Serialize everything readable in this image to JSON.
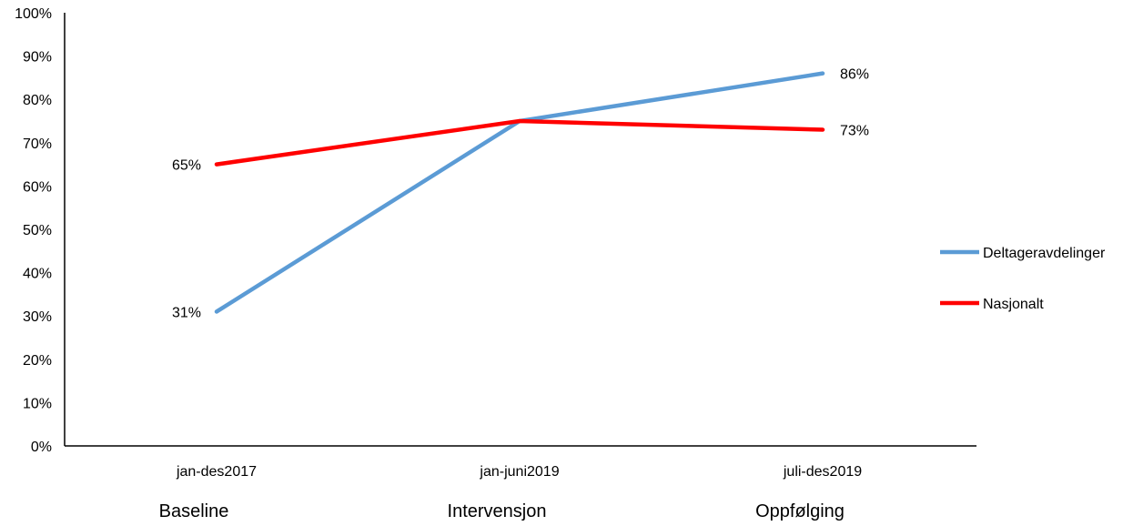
{
  "chart_data": {
    "type": "line",
    "title": "",
    "xlabel": "",
    "ylabel": "",
    "categories": [
      "jan-des2017",
      "jan-juni2019",
      "juli-des2019"
    ],
    "phases": [
      "Baseline",
      "Intervensjon",
      "Oppfølging"
    ],
    "series": [
      {
        "name": "Deltageravdelinger",
        "color": "#5B9BD5",
        "values": [
          31,
          75,
          86
        ],
        "labels": [
          "31%",
          "",
          "86%"
        ]
      },
      {
        "name": "Nasjonalt",
        "color": "#FF0000",
        "values": [
          65,
          75,
          73
        ],
        "labels": [
          "65%",
          "",
          "73%"
        ]
      }
    ],
    "ylim": [
      0,
      100
    ],
    "yticks": [
      "0%",
      "10%",
      "20%",
      "30%",
      "40%",
      "50%",
      "60%",
      "70%",
      "80%",
      "90%",
      "100%"
    ],
    "grid": false,
    "legend_position": "right"
  }
}
